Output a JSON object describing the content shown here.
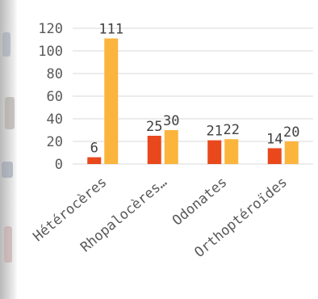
{
  "chart_data": {
    "type": "bar",
    "title": "",
    "xlabel": "",
    "ylabel": "",
    "categories": [
      "Hétérocères",
      "Rhopalocères…",
      "Odonates",
      "Orthoptéroïdes"
    ],
    "series": [
      {
        "values": [
          6,
          25,
          21,
          14
        ],
        "color": "#e8481c"
      },
      {
        "values": [
          111,
          30,
          22,
          20
        ],
        "color": "#fbb53c"
      }
    ],
    "ylim": [
      0,
      120
    ],
    "yticks": [
      0,
      20,
      40,
      60,
      80,
      100,
      120
    ],
    "grid": true,
    "legend": "none",
    "data_labels": true
  }
}
